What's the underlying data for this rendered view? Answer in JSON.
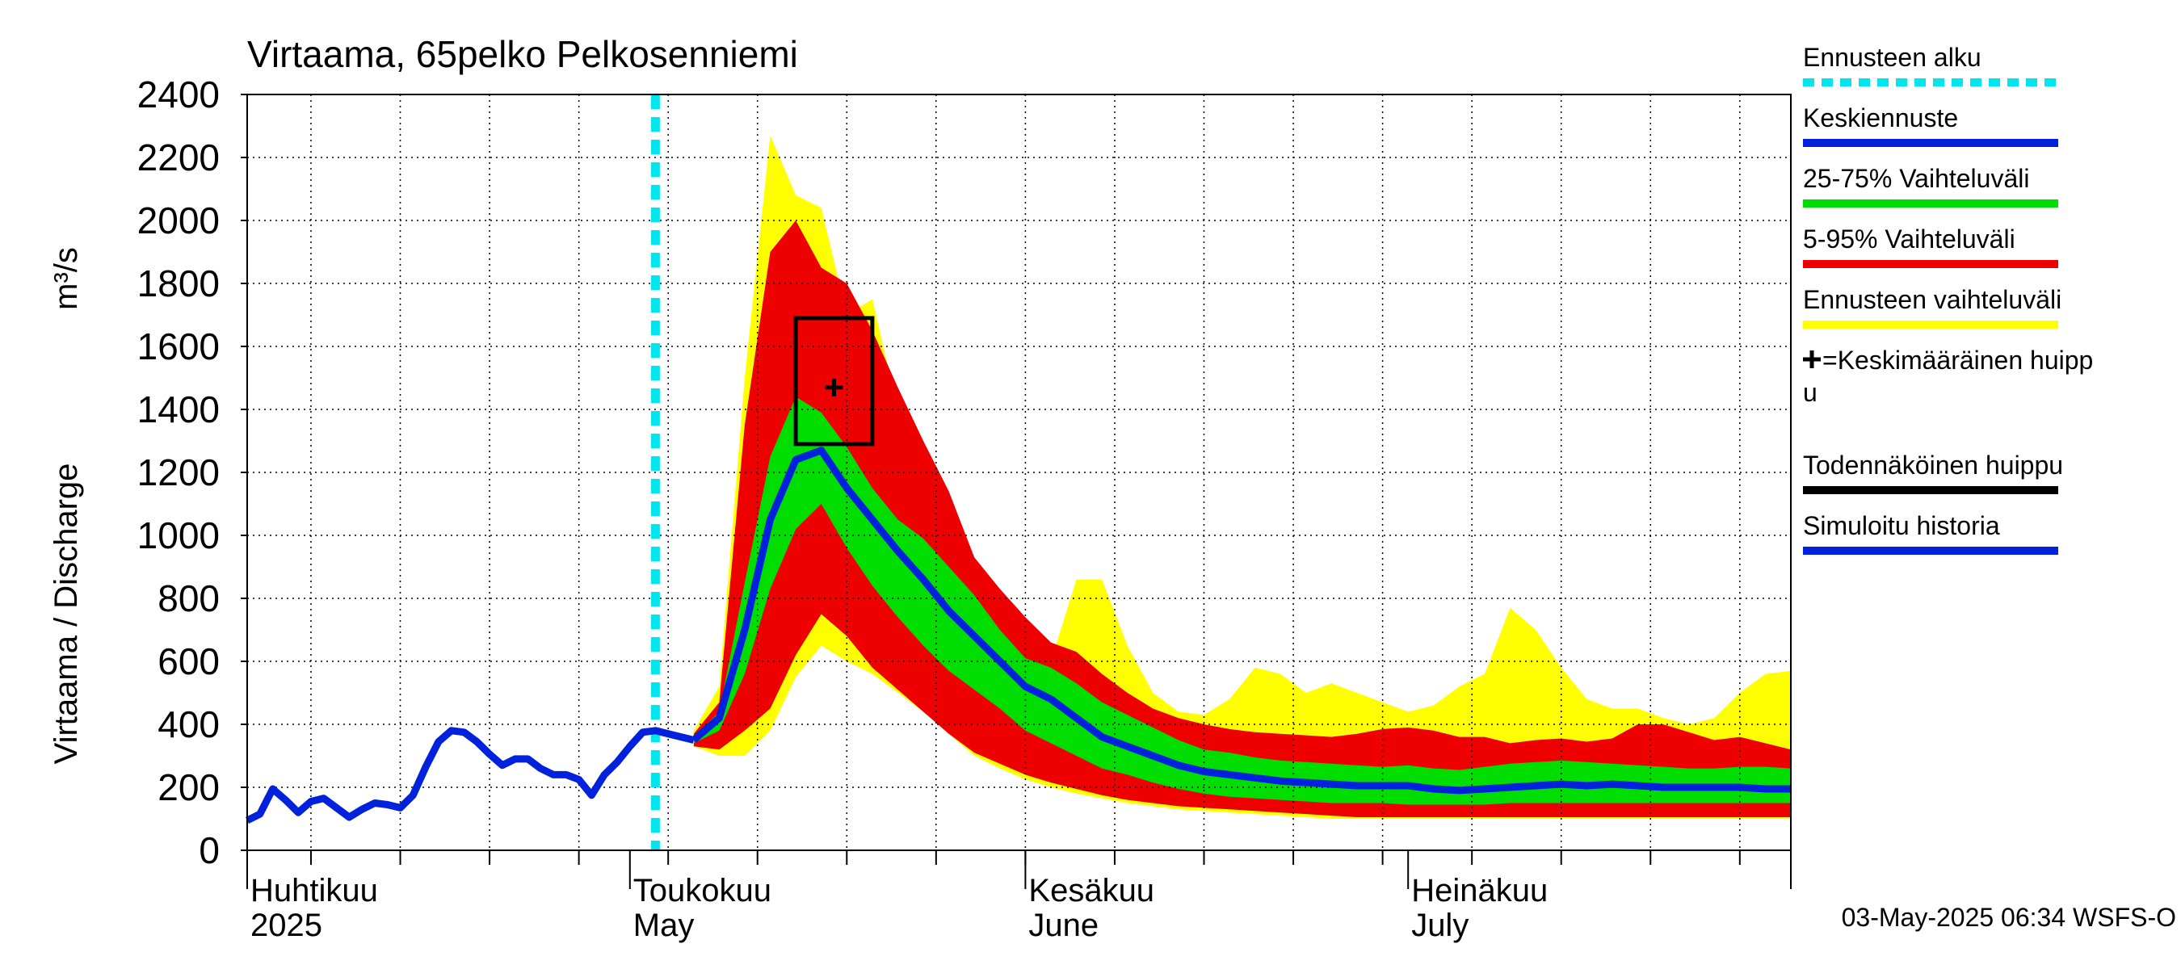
{
  "chart_data": {
    "type": "area",
    "title": "Virtaama, 65pelko Pelkosenniemi",
    "ylabel": "Virtaama / Discharge",
    "yunit": "m³/s",
    "ylim": [
      0,
      2400
    ],
    "yticks": [
      0,
      200,
      400,
      600,
      800,
      1000,
      1200,
      1400,
      1600,
      1800,
      2000,
      2200,
      2400
    ],
    "x_range": [
      "2025-04-01",
      "2025-07-31"
    ],
    "forecast_start": "2025-05-03",
    "grid": true,
    "legend_position": "right",
    "month_labels": [
      {
        "fi": "Huhtikuu",
        "en": "2025",
        "date": "2025-04-01"
      },
      {
        "fi": "Toukokuu",
        "en": "May",
        "date": "2025-05-01"
      },
      {
        "fi": "Kesäkuu",
        "en": "June",
        "date": "2025-06-01"
      },
      {
        "fi": "Heinäkuu",
        "en": "July",
        "date": "2025-07-01"
      }
    ],
    "legend": [
      {
        "label": "Ennusteen alku",
        "color": "#00e5ee",
        "style": "dashed"
      },
      {
        "label": "Keskiennuste",
        "color": "#0022dd",
        "style": "solid"
      },
      {
        "label": "25-75% Vaihteluväli",
        "color": "#00dd00",
        "style": "solid"
      },
      {
        "label": "5-95% Vaihteluväli",
        "color": "#ee0000",
        "style": "solid"
      },
      {
        "label": "Ennusteen vaihteluväli",
        "color": "#ffff00",
        "style": "solid"
      },
      {
        "label": "=Keskimääräinen huipp u",
        "color": "#000000",
        "style": "marker"
      },
      {
        "label": "Todennäköinen huippu",
        "color": "#000000",
        "style": "solid"
      },
      {
        "label": "Simuloitu historia",
        "color": "#0022dd",
        "style": "solid"
      }
    ],
    "colors": {
      "history": "#0022dd",
      "median": "#0022dd",
      "band_25_75": "#00dd00",
      "band_5_95": "#ee0000",
      "band_full": "#ffff00",
      "forecast_start": "#00e5ee",
      "peak": "#000000"
    },
    "history": {
      "x": [
        "2025-04-01",
        "2025-04-02",
        "2025-04-03",
        "2025-04-04",
        "2025-04-05",
        "2025-04-06",
        "2025-04-07",
        "2025-04-08",
        "2025-04-09",
        "2025-04-10",
        "2025-04-11",
        "2025-04-12",
        "2025-04-13",
        "2025-04-14",
        "2025-04-15",
        "2025-04-16",
        "2025-04-17",
        "2025-04-18",
        "2025-04-19",
        "2025-04-20",
        "2025-04-21",
        "2025-04-22",
        "2025-04-23",
        "2025-04-24",
        "2025-04-25",
        "2025-04-26",
        "2025-04-27",
        "2025-04-28",
        "2025-04-29",
        "2025-04-30",
        "2025-05-01",
        "2025-05-02",
        "2025-05-03",
        "2025-05-04",
        "2025-05-05",
        "2025-05-06"
      ],
      "values": [
        95,
        115,
        195,
        160,
        120,
        155,
        165,
        135,
        105,
        130,
        150,
        145,
        135,
        175,
        265,
        345,
        380,
        375,
        345,
        305,
        270,
        290,
        290,
        260,
        240,
        240,
        225,
        175,
        240,
        280,
        330,
        375,
        380,
        370,
        360,
        350
      ]
    },
    "forecast": {
      "x": [
        "2025-05-06",
        "2025-05-08",
        "2025-05-10",
        "2025-05-12",
        "2025-05-14",
        "2025-05-16",
        "2025-05-18",
        "2025-05-20",
        "2025-05-22",
        "2025-05-24",
        "2025-05-26",
        "2025-05-28",
        "2025-05-30",
        "2025-06-01",
        "2025-06-03",
        "2025-06-05",
        "2025-06-07",
        "2025-06-09",
        "2025-06-11",
        "2025-06-13",
        "2025-06-15",
        "2025-06-17",
        "2025-06-19",
        "2025-06-21",
        "2025-06-23",
        "2025-06-25",
        "2025-06-27",
        "2025-06-29",
        "2025-07-01",
        "2025-07-03",
        "2025-07-05",
        "2025-07-07",
        "2025-07-09",
        "2025-07-11",
        "2025-07-13",
        "2025-07-15",
        "2025-07-17",
        "2025-07-19",
        "2025-07-21",
        "2025-07-23",
        "2025-07-25",
        "2025-07-27",
        "2025-07-29",
        "2025-07-31"
      ],
      "median": [
        350,
        420,
        700,
        1050,
        1240,
        1270,
        1150,
        1050,
        950,
        860,
        760,
        680,
        600,
        520,
        480,
        420,
        360,
        330,
        300,
        270,
        250,
        240,
        230,
        220,
        215,
        210,
        205,
        205,
        205,
        195,
        190,
        195,
        200,
        205,
        210,
        205,
        210,
        205,
        200,
        200,
        200,
        200,
        195,
        195
      ],
      "p25": [
        340,
        380,
        560,
        830,
        1020,
        1100,
        960,
        840,
        740,
        650,
        570,
        510,
        450,
        380,
        340,
        300,
        260,
        240,
        215,
        195,
        180,
        170,
        165,
        160,
        155,
        150,
        150,
        150,
        145,
        145,
        145,
        145,
        150,
        150,
        150,
        150,
        150,
        150,
        150,
        150,
        150,
        150,
        150,
        150
      ],
      "p75": [
        360,
        440,
        850,
        1250,
        1440,
        1390,
        1280,
        1150,
        1050,
        990,
        900,
        810,
        700,
        610,
        580,
        530,
        470,
        430,
        390,
        350,
        320,
        310,
        295,
        285,
        280,
        275,
        270,
        265,
        270,
        260,
        255,
        265,
        275,
        280,
        285,
        280,
        275,
        270,
        265,
        260,
        260,
        265,
        265,
        260
      ],
      "p5": [
        330,
        320,
        380,
        450,
        620,
        750,
        680,
        580,
        510,
        440,
        370,
        310,
        275,
        240,
        215,
        195,
        175,
        160,
        150,
        140,
        135,
        130,
        125,
        120,
        115,
        110,
        105,
        105,
        105,
        105,
        105,
        105,
        105,
        105,
        105,
        105,
        105,
        105,
        105,
        105,
        105,
        105,
        105,
        105
      ],
      "p95": [
        370,
        470,
        1350,
        1900,
        2000,
        1850,
        1800,
        1650,
        1470,
        1300,
        1140,
        930,
        830,
        740,
        660,
        630,
        560,
        500,
        450,
        420,
        400,
        385,
        375,
        370,
        365,
        360,
        370,
        385,
        390,
        380,
        360,
        360,
        340,
        350,
        355,
        345,
        355,
        400,
        400,
        375,
        350,
        360,
        340,
        320
      ],
      "min": [
        330,
        300,
        300,
        380,
        550,
        650,
        600,
        560,
        500,
        440,
        370,
        300,
        260,
        225,
        200,
        180,
        165,
        150,
        140,
        130,
        125,
        120,
        115,
        110,
        105,
        100,
        100,
        100,
        100,
        100,
        100,
        100,
        100,
        100,
        100,
        100,
        100,
        100,
        100,
        100,
        100,
        100,
        100,
        100
      ],
      "max": [
        380,
        520,
        1500,
        2270,
        2080,
        2040,
        1700,
        1750,
        1400,
        1000,
        860,
        760,
        750,
        670,
        600,
        860,
        860,
        650,
        500,
        440,
        430,
        480,
        580,
        560,
        500,
        530,
        500,
        470,
        440,
        460,
        520,
        560,
        770,
        700,
        580,
        480,
        450,
        450,
        420,
        400,
        420,
        500,
        560,
        570
      ]
    },
    "peak_box": {
      "x_start": "2025-05-14",
      "x_end": "2025-05-20",
      "y_low": 1290,
      "y_high": 1690
    },
    "mean_peak": {
      "x": "2025-05-17",
      "y": 1470
    }
  },
  "timestamp": "03-May-2025 06:34 WSFS-O"
}
